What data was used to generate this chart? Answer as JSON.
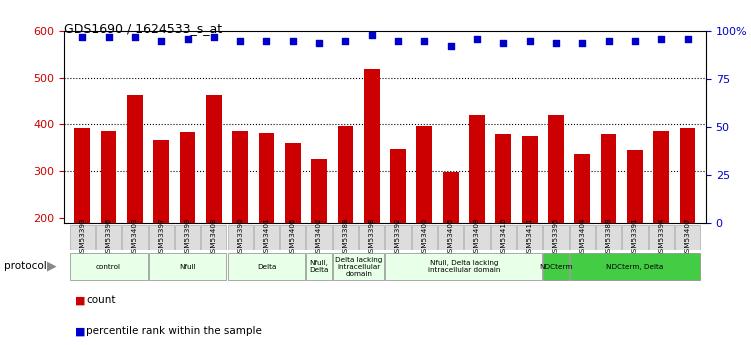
{
  "title": "GDS1690 / 1624533_s_at",
  "samples": [
    "GSM53393",
    "GSM53396",
    "GSM53403",
    "GSM53397",
    "GSM53399",
    "GSM53408",
    "GSM53390",
    "GSM53401",
    "GSM53406",
    "GSM53402",
    "GSM53388",
    "GSM53398",
    "GSM53392",
    "GSM53400",
    "GSM53405",
    "GSM53409",
    "GSM53410",
    "GSM53411",
    "GSM53395",
    "GSM53404",
    "GSM53389",
    "GSM53391",
    "GSM53394",
    "GSM53407"
  ],
  "counts": [
    392,
    385,
    462,
    366,
    383,
    462,
    387,
    381,
    361,
    325,
    397,
    519,
    348,
    397,
    298,
    420,
    380,
    375,
    420,
    337,
    380,
    345,
    387,
    392
  ],
  "percentiles": [
    97,
    97,
    97,
    95,
    96,
    97,
    95,
    95,
    95,
    94,
    95,
    98,
    95,
    95,
    92,
    96,
    94,
    95,
    94,
    94,
    95,
    95,
    96,
    96
  ],
  "bar_color": "#cc0000",
  "dot_color": "#0000cc",
  "ylim_left": [
    190,
    600
  ],
  "ylim_right": [
    0,
    100
  ],
  "yticks_left": [
    200,
    300,
    400,
    500,
    600
  ],
  "yticks_right": [
    0,
    25,
    50,
    75,
    100
  ],
  "grid_vals": [
    300,
    400,
    500
  ],
  "protocols": [
    {
      "label": "control",
      "start": 0,
      "end": 2,
      "color": "#e8ffe8"
    },
    {
      "label": "Nfull",
      "start": 3,
      "end": 5,
      "color": "#e8ffe8"
    },
    {
      "label": "Delta",
      "start": 6,
      "end": 8,
      "color": "#e8ffe8"
    },
    {
      "label": "Nfull,\nDelta",
      "start": 9,
      "end": 9,
      "color": "#e8ffe8"
    },
    {
      "label": "Delta lacking\nintracellular\ndomain",
      "start": 10,
      "end": 11,
      "color": "#e8ffe8"
    },
    {
      "label": "Nfull, Delta lacking\nintracellular domain",
      "start": 12,
      "end": 17,
      "color": "#e8ffe8"
    },
    {
      "label": "NDCterm",
      "start": 18,
      "end": 18,
      "color": "#44cc44"
    },
    {
      "label": "NDCterm, Delta",
      "start": 19,
      "end": 23,
      "color": "#44cc44"
    }
  ],
  "protocol_label": "protocol",
  "legend_count_label": "count",
  "legend_pct_label": "percentile rank within the sample",
  "background_color": "#ffffff"
}
